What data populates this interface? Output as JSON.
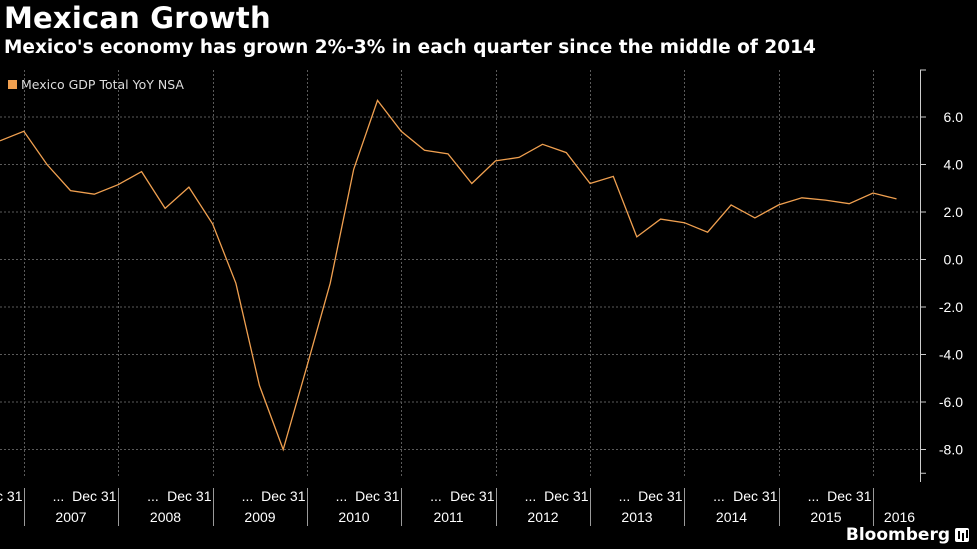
{
  "header": {
    "title": "Mexican Growth",
    "subtitle": "Mexico's economy has grown 2%-3% in each quarter since the middle of 2014"
  },
  "brand": {
    "name": "Bloomberg"
  },
  "colors": {
    "series": "#f0a050",
    "background": "#000000",
    "grid": "#5a5a5a"
  },
  "chart_data": {
    "type": "line",
    "title": "Mexican Growth",
    "subtitle": "Mexico's economy has grown 2%-3% in each quarter since the middle of 2014",
    "series": [
      {
        "name": "Mexico GDP Total YoY NSA",
        "color": "#f0a050",
        "points": [
          [
            "2006-09-30",
            5.0
          ],
          [
            "2006-12-31",
            5.4
          ],
          [
            "2007-03-31",
            4.0
          ],
          [
            "2007-06-30",
            2.9
          ],
          [
            "2007-09-30",
            2.75
          ],
          [
            "2007-12-31",
            3.15
          ],
          [
            "2008-03-31",
            3.7
          ],
          [
            "2008-06-30",
            2.15
          ],
          [
            "2008-09-30",
            3.05
          ],
          [
            "2008-12-31",
            1.5
          ],
          [
            "2009-03-31",
            -1.0
          ],
          [
            "2009-06-30",
            -5.3
          ],
          [
            "2009-09-30",
            -8.0
          ],
          [
            "2009-12-31",
            -4.5
          ],
          [
            "2010-03-31",
            -1.0
          ],
          [
            "2010-06-30",
            3.8
          ],
          [
            "2010-09-30",
            6.7
          ],
          [
            "2010-12-31",
            5.4
          ],
          [
            "2011-03-31",
            4.6
          ],
          [
            "2011-06-30",
            4.45
          ],
          [
            "2011-09-30",
            3.2
          ],
          [
            "2011-12-31",
            4.15
          ],
          [
            "2012-03-31",
            4.3
          ],
          [
            "2012-06-30",
            4.85
          ],
          [
            "2012-09-30",
            4.5
          ],
          [
            "2012-12-31",
            3.2
          ],
          [
            "2013-03-31",
            3.5
          ],
          [
            "2013-06-30",
            0.95
          ],
          [
            "2013-09-30",
            1.7
          ],
          [
            "2013-12-31",
            1.55
          ],
          [
            "2014-03-31",
            1.15
          ],
          [
            "2014-06-30",
            2.3
          ],
          [
            "2014-09-30",
            1.75
          ],
          [
            "2014-12-31",
            2.3
          ],
          [
            "2015-03-31",
            2.6
          ],
          [
            "2015-06-30",
            2.5
          ],
          [
            "2015-09-30",
            2.35
          ],
          [
            "2015-12-31",
            2.8
          ],
          [
            "2016-03-31",
            2.55
          ]
        ]
      }
    ],
    "y_axis": {
      "position": "right",
      "ylim": [
        -9,
        8
      ],
      "ticks": [
        6.0,
        4.0,
        2.0,
        0.0,
        -2.0,
        -4.0,
        -6.0,
        -8.0
      ],
      "tick_labels": [
        "6.0",
        "4.0",
        "2.0",
        "0.0",
        "-2.0",
        "-4.0",
        "-6.0",
        "-8.0"
      ]
    },
    "x_axis": {
      "range": [
        "2006-09-30",
        "2016-06-30"
      ],
      "tick_dates": [
        "2006-12-31",
        "2007-12-31",
        "2008-12-31",
        "2009-12-31",
        "2010-12-31",
        "2011-12-31",
        "2012-12-31",
        "2013-12-31",
        "2014-12-31",
        "2015-12-31"
      ],
      "tick_label": "Dec 31",
      "ellipsis": "...",
      "years": [
        "2007",
        "2008",
        "2009",
        "2010",
        "2011",
        "2012",
        "2013",
        "2014",
        "2015",
        "2016"
      ]
    },
    "grid": true,
    "legend": {
      "placement": "top-left",
      "entries": [
        "Mexico GDP Total YoY NSA"
      ]
    }
  }
}
